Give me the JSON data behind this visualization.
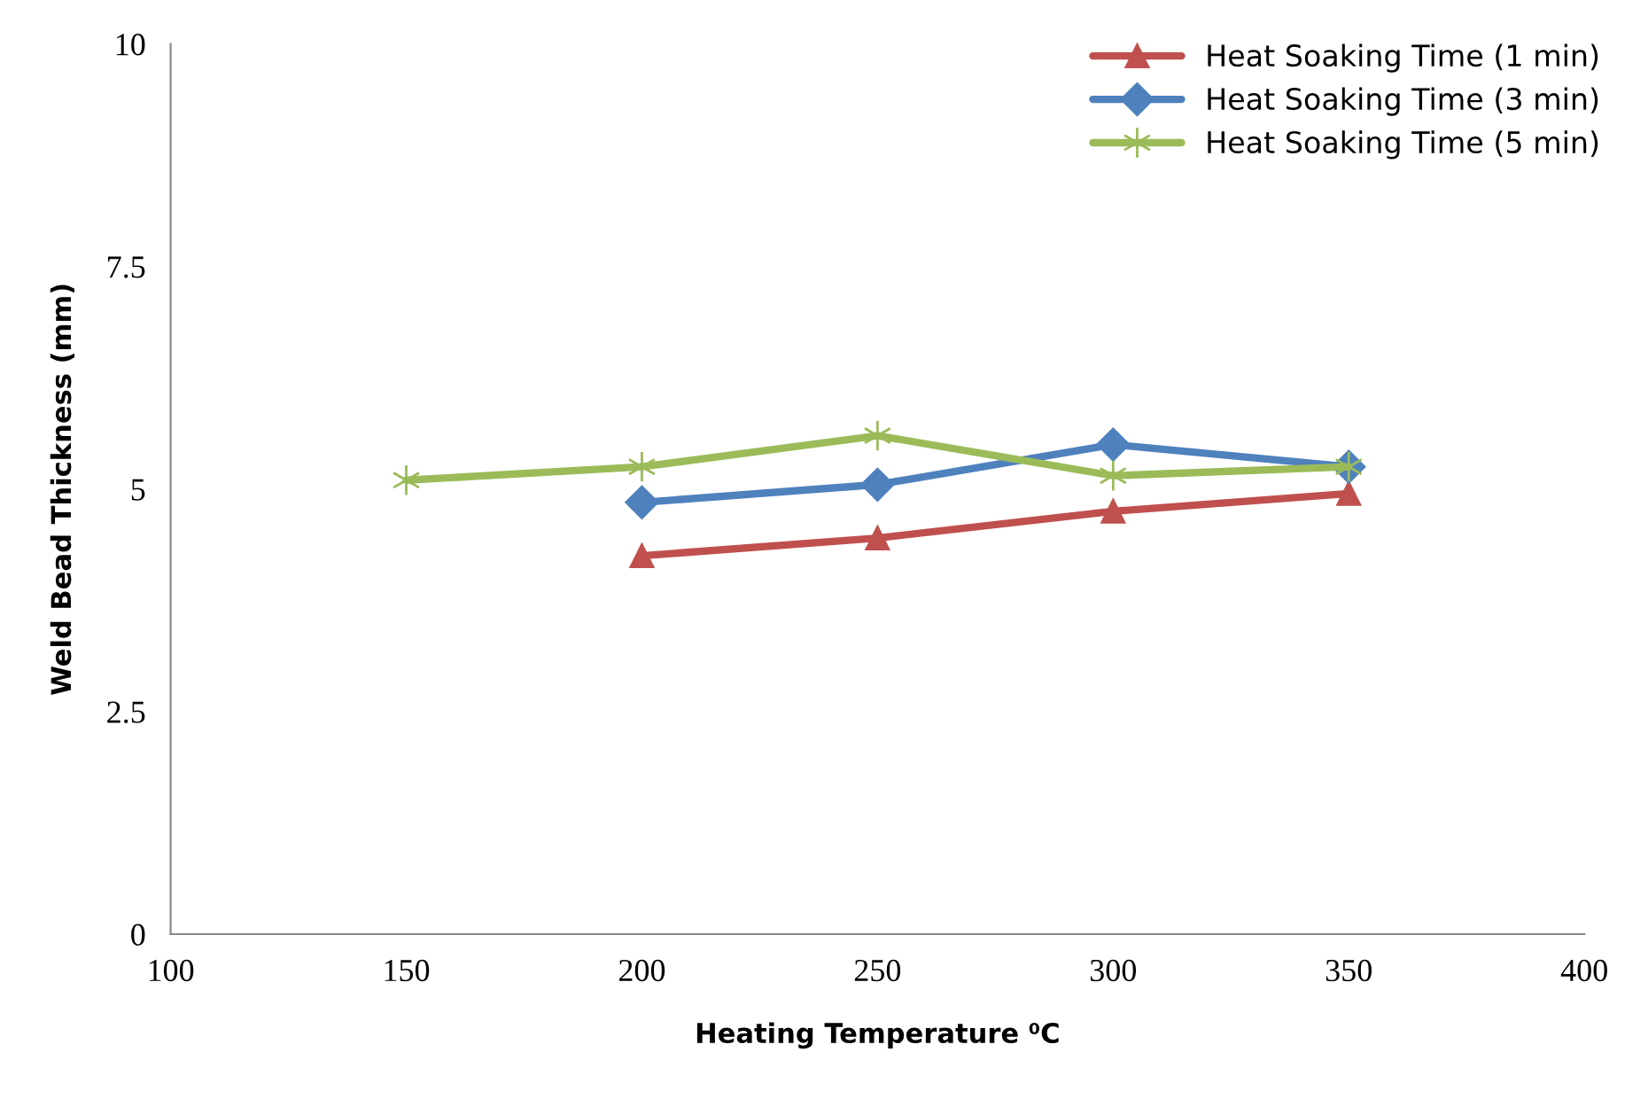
{
  "chart_data": {
    "type": "line",
    "xlabel": "Heating Temperature ⁰C",
    "ylabel": "Weld Bead Thickness (mm)",
    "xlim": [
      100,
      400
    ],
    "xticks": [
      100,
      150,
      200,
      250,
      300,
      350,
      400
    ],
    "ylim": [
      0,
      10
    ],
    "yticks": [
      0,
      {
        "value": 2.5,
        "label": "2.5"
      },
      5,
      {
        "value": 7.5,
        "label": "7.5"
      },
      10
    ],
    "grid": false,
    "legend": "top right",
    "line_style": "solid",
    "series": [
      {
        "name": "Heat Soaking Time (1 min)",
        "color": "#c0504d",
        "marker": "triangle",
        "x": [
          200,
          250,
          300,
          350
        ],
        "values": [
          4.25,
          4.45,
          4.75,
          4.95
        ]
      },
      {
        "name": "Heat Soaking Time (3 min)",
        "color": "#4f81bd",
        "marker": "diamond",
        "x": [
          200,
          250,
          300,
          350
        ],
        "values": [
          4.85,
          5.05,
          5.5,
          5.25
        ]
      },
      {
        "name": "Heat Soaking Time (5 min)",
        "color": "#9bbb59",
        "marker": "cross",
        "x": [
          150,
          200,
          250,
          300,
          350
        ],
        "values": [
          5.1,
          5.25,
          5.6,
          5.15,
          5.25
        ]
      }
    ]
  }
}
